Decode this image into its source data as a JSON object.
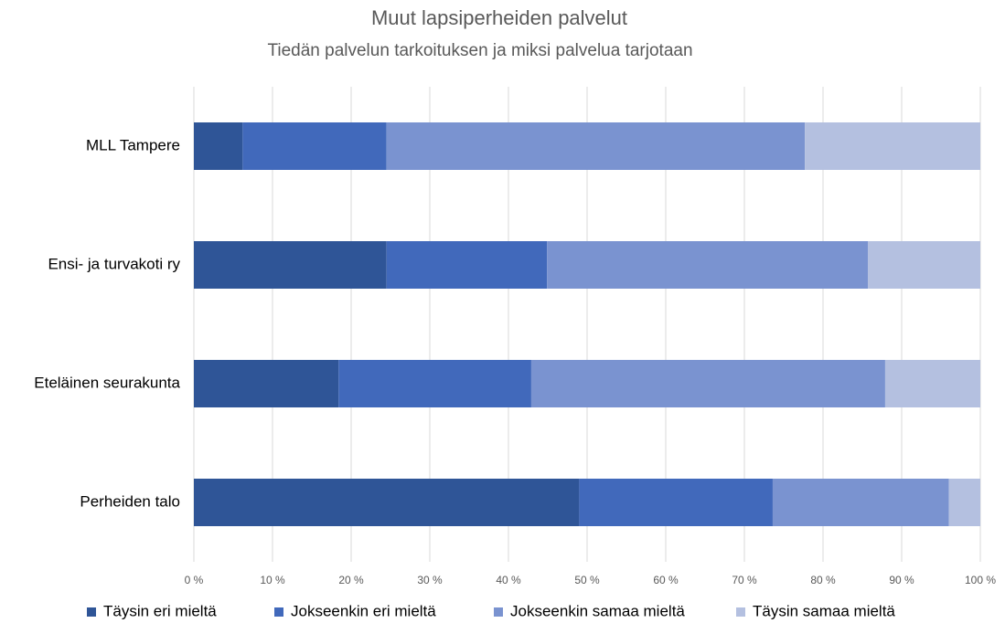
{
  "chart_data": {
    "type": "bar",
    "horizontal": true,
    "stacked": true,
    "title": "Muut lapsiperheiden palvelut",
    "subtitle": "Tiedän palvelun tarkoituksen ja miksi palvelua tarjotaan",
    "categories": [
      "MLL Tampere",
      "Ensi- ja turvakoti ry",
      "Eteläinen seurakunta",
      "Perheiden talo"
    ],
    "series": [
      {
        "name": "Täysin eri mieltä",
        "color": "#2f5597",
        "values": [
          6.2,
          24.5,
          18.4,
          49.0
        ]
      },
      {
        "name": "Jokseenkin eri mieltä",
        "color": "#4169bb",
        "values": [
          18.3,
          20.4,
          24.5,
          24.6
        ]
      },
      {
        "name": "Jokseenkin samaa mieltä",
        "color": "#7a93d0",
        "values": [
          53.2,
          40.8,
          45.0,
          22.4
        ]
      },
      {
        "name": "Täysin samaa mieltä",
        "color": "#b4c0e0",
        "values": [
          22.3,
          14.3,
          12.1,
          4.0
        ]
      }
    ],
    "xlim": [
      0,
      100
    ],
    "xticks": [
      {
        "value": 0,
        "label": "0 %"
      },
      {
        "value": 10,
        "label": "10 %"
      },
      {
        "value": 20,
        "label": "20 %"
      },
      {
        "value": 30,
        "label": "30 %"
      },
      {
        "value": 40,
        "label": "40 %"
      },
      {
        "value": 50,
        "label": "50 %"
      },
      {
        "value": 60,
        "label": "60 %"
      },
      {
        "value": 70,
        "label": "70 %"
      },
      {
        "value": 80,
        "label": "80 %"
      },
      {
        "value": 90,
        "label": "90 %"
      },
      {
        "value": 100,
        "label": "100 %"
      }
    ],
    "grid": true
  }
}
